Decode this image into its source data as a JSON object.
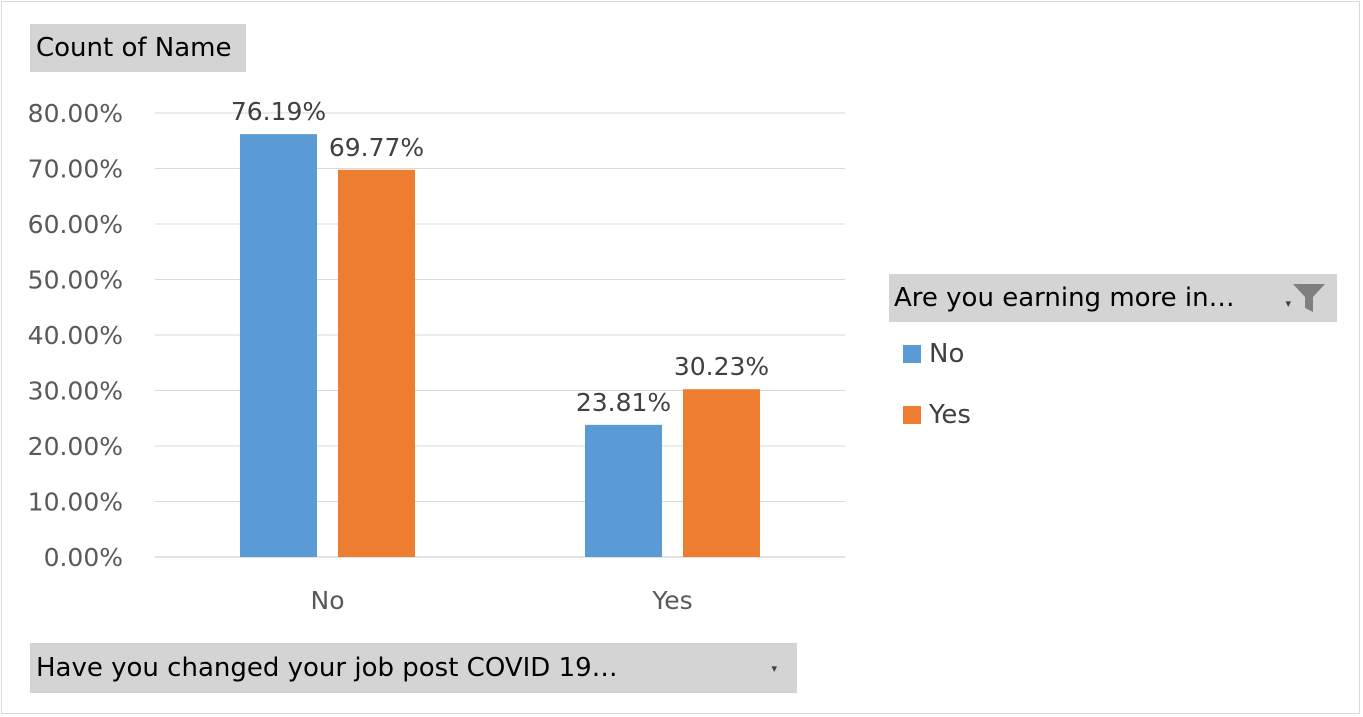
{
  "values_field": "Count of Name",
  "axis_field": "Have you changed your job post COVID 19…",
  "legend_field": "Are you earning more in…",
  "icons": {
    "axis_dropdown": "dropdown-arrow-icon",
    "legend_dropdown": "dropdown-arrow-icon",
    "legend_filter": "filter-funnel-icon"
  },
  "chart_data": {
    "type": "bar",
    "title": "",
    "xlabel": "",
    "ylabel": "",
    "categories": [
      "No",
      "Yes"
    ],
    "series": [
      {
        "name": "No",
        "color": "#5b9bd5",
        "values": [
          76.19,
          23.81
        ],
        "labels": [
          "76.19%",
          "23.81%"
        ]
      },
      {
        "name": "Yes",
        "color": "#ed7d31",
        "values": [
          69.77,
          30.23
        ],
        "labels": [
          "69.77%",
          "30.23%"
        ]
      }
    ],
    "ylim": [
      0,
      80
    ],
    "yticks": [
      "0.00%",
      "10.00%",
      "20.00%",
      "30.00%",
      "40.00%",
      "50.00%",
      "60.00%",
      "70.00%",
      "80.00%"
    ],
    "grid": true,
    "legend_position": "right"
  }
}
